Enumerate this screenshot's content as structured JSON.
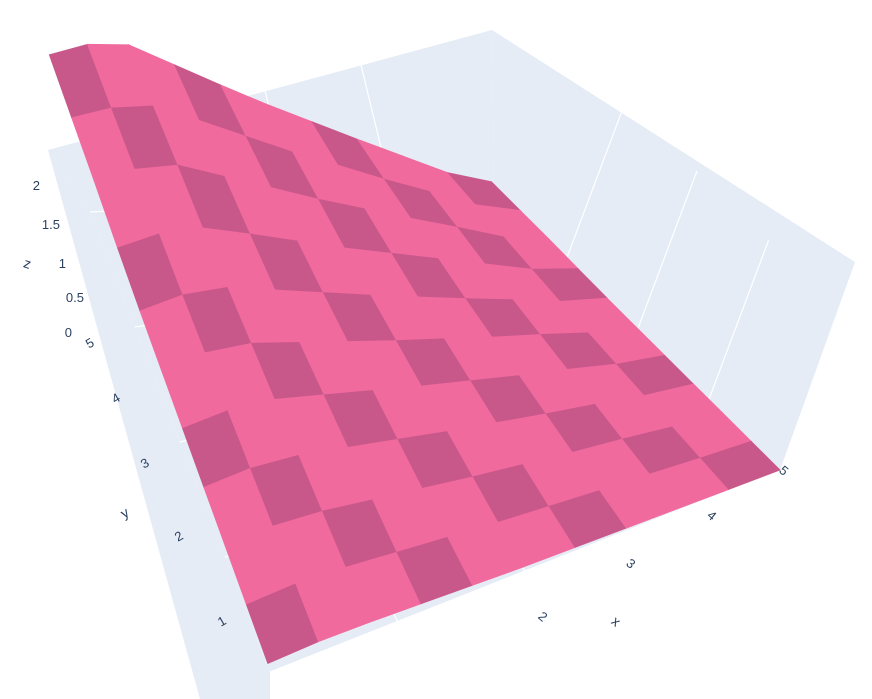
{
  "chart_data": {
    "type": "surface",
    "title": "",
    "xlabel": "x",
    "ylabel": "y",
    "zlabel": "z",
    "x_ticks": [
      "2",
      "3",
      "4",
      "5"
    ],
    "y_ticks": [
      "1",
      "2",
      "3",
      "4",
      "5"
    ],
    "z_ticks": [
      "0",
      "0.5",
      "1",
      "1.5",
      "2"
    ],
    "xlim": [
      1,
      5
    ],
    "ylim": [
      0.6,
      5
    ],
    "zlim": [
      0,
      2.1
    ],
    "surface": {
      "description_free_model": true,
      "x_values": [
        1.0,
        1.4,
        1.8,
        2.2,
        2.6,
        3.0,
        3.4,
        3.8,
        4.2,
        4.6,
        5.0
      ],
      "y_values": [
        1.0,
        1.4,
        1.8,
        2.2,
        2.6,
        3.0,
        3.4,
        3.8,
        4.2,
        4.6,
        5.0
      ],
      "z_rows": [
        [
          0.1,
          0.25,
          0.4,
          0.55,
          0.7,
          0.85,
          1.0,
          1.2,
          1.45,
          1.65,
          1.85
        ],
        [
          0.12,
          0.28,
          0.44,
          0.6,
          0.76,
          0.92,
          1.08,
          1.28,
          1.52,
          1.72,
          1.95
        ],
        [
          0.11,
          0.26,
          0.42,
          0.58,
          0.74,
          0.9,
          1.06,
          1.26,
          1.5,
          1.7,
          1.92
        ],
        [
          0.09,
          0.22,
          0.36,
          0.5,
          0.64,
          0.78,
          0.92,
          1.1,
          1.3,
          1.48,
          1.66
        ],
        [
          0.07,
          0.18,
          0.3,
          0.42,
          0.54,
          0.66,
          0.78,
          0.93,
          1.1,
          1.25,
          1.4
        ],
        [
          0.05,
          0.14,
          0.24,
          0.34,
          0.44,
          0.54,
          0.64,
          0.76,
          0.9,
          1.02,
          1.15
        ],
        [
          0.04,
          0.11,
          0.19,
          0.27,
          0.35,
          0.43,
          0.51,
          0.61,
          0.72,
          0.82,
          0.92
        ],
        [
          0.03,
          0.08,
          0.14,
          0.2,
          0.26,
          0.32,
          0.38,
          0.46,
          0.54,
          0.61,
          0.69
        ],
        [
          0.02,
          0.06,
          0.1,
          0.14,
          0.18,
          0.22,
          0.26,
          0.31,
          0.37,
          0.42,
          0.47
        ],
        [
          0.01,
          0.03,
          0.05,
          0.07,
          0.09,
          0.11,
          0.13,
          0.16,
          0.19,
          0.22,
          0.25
        ],
        [
          0.0,
          0.01,
          0.02,
          0.03,
          0.04,
          0.05,
          0.06,
          0.08,
          0.1,
          0.11,
          0.12
        ]
      ]
    },
    "colors": {
      "surface": "#f06a9e",
      "surface_dark": "#c9588a",
      "background_plane": "#e5ecf6",
      "grid": "#ffffff",
      "tick_text": "#2a3f5f"
    },
    "grid": true
  }
}
